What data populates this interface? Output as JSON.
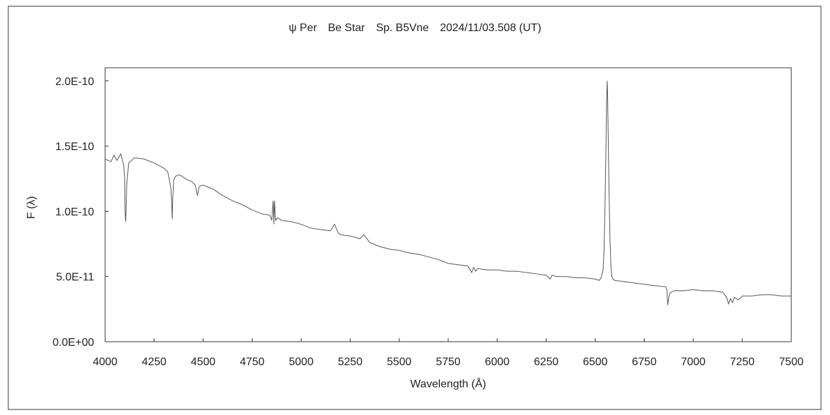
{
  "chart_data": {
    "type": "line",
    "title": "ψ Per　Be Star　Sp. B5Vne　2024/11/03.508 (UT)",
    "xlabel": "Wavelength (Å)",
    "ylabel": "F (λ)",
    "xlim": [
      4000,
      7500
    ],
    "ylim": [
      0,
      2.1e-10
    ],
    "x_ticks": [
      4000,
      4250,
      4500,
      4750,
      5000,
      5250,
      5500,
      5750,
      6000,
      6250,
      6500,
      6750,
      7000,
      7250,
      7500
    ],
    "y_ticks": [
      0,
      5e-11,
      1e-10,
      1.5e-10,
      2e-10
    ],
    "x_tick_labels": [
      "4000",
      "4250",
      "4500",
      "4750",
      "5000",
      "5250",
      "5500",
      "5750",
      "6000",
      "6250",
      "6500",
      "6750",
      "7000",
      "7250",
      "7500"
    ],
    "y_tick_labels": [
      "0.0E+00",
      "5.0E-11",
      "1.0E-10",
      "1.5E-10",
      "2.0E-10"
    ],
    "grid": false,
    "series": [
      {
        "color": "#555555",
        "x": [
          4000,
          4030,
          4045,
          4060,
          4080,
          4095,
          4100,
          4102,
          4105,
          4110,
          4120,
          4150,
          4200,
          4250,
          4300,
          4320,
          4335,
          4340,
          4342,
          4345,
          4350,
          4360,
          4380,
          4400,
          4420,
          4440,
          4460,
          4471,
          4480,
          4500,
          4550,
          4600,
          4650,
          4700,
          4750,
          4800,
          4840,
          4850,
          4857,
          4861,
          4864,
          4870,
          4880,
          4900,
          4950,
          5000,
          5050,
          5100,
          5150,
          5170,
          5190,
          5200,
          5250,
          5300,
          5320,
          5350,
          5400,
          5450,
          5500,
          5550,
          5600,
          5650,
          5700,
          5750,
          5800,
          5850,
          5870,
          5880,
          5890,
          5900,
          5950,
          6000,
          6050,
          6100,
          6150,
          6200,
          6250,
          6270,
          6280,
          6300,
          6350,
          6400,
          6450,
          6500,
          6520,
          6530,
          6540,
          6545,
          6550,
          6555,
          6558,
          6561,
          6563,
          6566,
          6570,
          6575,
          6580,
          6585,
          6590,
          6600,
          6650,
          6700,
          6750,
          6800,
          6860,
          6865,
          6870,
          6875,
          6880,
          6890,
          6900,
          6950,
          7000,
          7050,
          7100,
          7150,
          7170,
          7180,
          7190,
          7200,
          7210,
          7230,
          7250,
          7300,
          7350,
          7400,
          7450,
          7500
        ],
        "y": [
          1.4e-10,
          1.38e-10,
          1.43e-10,
          1.39e-10,
          1.44e-10,
          1.35e-10,
          1.25e-10,
          9.8e-11,
          9.2e-11,
          1.2e-10,
          1.37e-10,
          1.41e-10,
          1.4e-10,
          1.37e-10,
          1.33e-10,
          1.3e-10,
          1.18e-10,
          1.05e-10,
          9.4e-11,
          1.1e-10,
          1.24e-10,
          1.27e-10,
          1.28e-10,
          1.26e-10,
          1.24e-10,
          1.23e-10,
          1.2e-10,
          1.12e-10,
          1.19e-10,
          1.2e-10,
          1.17e-10,
          1.12e-10,
          1.08e-10,
          1.05e-10,
          1.01e-10,
          9.8e-11,
          9.7e-11,
          9.3e-11,
          1.08e-10,
          9e-11,
          1.08e-10,
          9.3e-11,
          9.5e-11,
          9.3e-11,
          9.2e-11,
          9e-11,
          8.7e-11,
          8.6e-11,
          8.5e-11,
          9e-11,
          8.3e-11,
          8.2e-11,
          8.1e-11,
          7.9e-11,
          8.2e-11,
          7.6e-11,
          7.3e-11,
          7.1e-11,
          7e-11,
          6.8e-11,
          6.7e-11,
          6.5e-11,
          6.3e-11,
          6e-11,
          5.9e-11,
          5.8e-11,
          5.3e-11,
          5.7e-11,
          5.4e-11,
          5.6e-11,
          5.5e-11,
          5.5e-11,
          5.4e-11,
          5.4e-11,
          5.3e-11,
          5.2e-11,
          5.1e-11,
          4.8e-11,
          5.1e-11,
          5e-11,
          5e-11,
          4.9e-11,
          4.9e-11,
          4.8e-11,
          4.7e-11,
          4.9e-11,
          5.5e-11,
          7e-11,
          1.05e-10,
          1.5e-10,
          1.85e-10,
          2e-10,
          1.9e-10,
          1.6e-10,
          1.2e-10,
          8e-11,
          5.8e-11,
          5e-11,
          4.8e-11,
          4.7e-11,
          4.6e-11,
          4.5e-11,
          4.4e-11,
          4.3e-11,
          4.2e-11,
          4e-11,
          2.8e-11,
          3.4e-11,
          3.7e-11,
          3.8e-11,
          3.9e-11,
          3.9e-11,
          4e-11,
          3.9e-11,
          3.9e-11,
          3.8e-11,
          3.4e-11,
          2.9e-11,
          3.3e-11,
          3e-11,
          3.4e-11,
          3.2e-11,
          3.5e-11,
          3.5e-11,
          3.6e-11,
          3.6e-11,
          3.5e-11,
          3.5e-11
        ]
      }
    ]
  }
}
